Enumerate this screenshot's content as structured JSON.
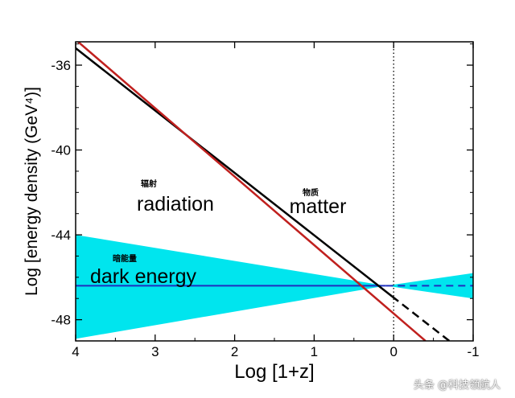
{
  "chart_data": {
    "type": "line",
    "xlabel": "Log [1+z]",
    "ylabel": "Log [energy density (GeV⁴)]",
    "xlim": [
      4,
      -1
    ],
    "ylim": [
      -49,
      -34.9
    ],
    "xticks": [
      4,
      3,
      2,
      1,
      0,
      -1
    ],
    "yticks": [
      -36,
      -40,
      -44,
      -48
    ],
    "series": [
      {
        "name": "radiation",
        "label_cn": "辐射",
        "color": "#c0201e",
        "x": [
          4,
          -0.4
        ],
        "y": [
          -34.8,
          -49
        ]
      },
      {
        "name": "matter",
        "label_cn": "物质",
        "color": "#000000",
        "x": [
          4,
          0.02
        ],
        "y": [
          -35.2,
          -46.9
        ],
        "dashed_x": [
          0.02,
          -0.7
        ],
        "dashed_y": [
          -46.9,
          -49
        ]
      },
      {
        "name": "dark energy",
        "label_cn": "暗能量",
        "color": "#1f2fbf",
        "x": [
          4,
          -1
        ],
        "y": [
          -46.4,
          -46.4
        ],
        "band_color": "#00e5ee",
        "band_upper": [
          [
            4,
            -44.0
          ],
          [
            0.1,
            -46.4
          ],
          [
            -1,
            -45.8
          ]
        ],
        "band_lower": [
          [
            4,
            -48.9
          ],
          [
            0.1,
            -46.4
          ],
          [
            -1,
            -47.0
          ]
        ]
      }
    ],
    "annotations": [
      {
        "text": "radiation",
        "sub": "辐射"
      },
      {
        "text": "matter",
        "sub": "物质"
      },
      {
        "text": "dark energy",
        "sub": "暗能量"
      }
    ],
    "reference_line": {
      "x": 0,
      "style": "dotted"
    }
  },
  "watermark": "头条 @科技领航人"
}
